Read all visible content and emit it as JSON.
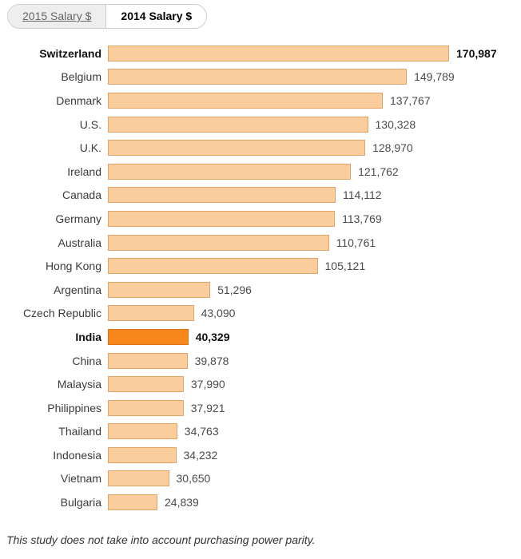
{
  "tabs": [
    {
      "label": "2015 Salary $",
      "active": false
    },
    {
      "label": "2014 Salary $",
      "active": true
    }
  ],
  "chart_data": {
    "type": "bar",
    "orientation": "horizontal",
    "title": "2014 Salary $",
    "xlabel": "",
    "ylabel": "",
    "xlim": [
      0,
      170987
    ],
    "grid": false,
    "legend": false,
    "categories": [
      "Switzerland",
      "Belgium",
      "Denmark",
      "U.S.",
      "U.K.",
      "Ireland",
      "Canada",
      "Germany",
      "Australia",
      "Hong Kong",
      "Argentina",
      "Czech Republic",
      "India",
      "China",
      "Malaysia",
      "Philippines",
      "Thailand",
      "Indonesia",
      "Vietnam",
      "Bulgaria"
    ],
    "values": [
      170987,
      149789,
      137767,
      130328,
      128970,
      121762,
      114112,
      113769,
      110761,
      105121,
      51296,
      43090,
      40329,
      39878,
      37990,
      37921,
      34763,
      34232,
      30650,
      24839
    ],
    "value_labels": [
      "170,987",
      "149,789",
      "137,767",
      "130,328",
      "128,970",
      "121,762",
      "114,112",
      "113,769",
      "110,761",
      "105,121",
      "51,296",
      "43,090",
      "40,329",
      "39,878",
      "37,990",
      "37,921",
      "34,763",
      "34,232",
      "30,650",
      "24,839"
    ],
    "bold_rows": [
      "Switzerland",
      "India"
    ],
    "highlighted_bar": "India"
  },
  "colors": {
    "bar_fill": "#FBCD9D",
    "bar_border": "#E3A368",
    "highlight_fill": "#F8871B",
    "highlight_border": "#DC7519",
    "label_text": "#3A3A3A",
    "value_text": "#4A4A4A",
    "bold_text": "#111111",
    "tab_inactive_bg": "#EEEEEE",
    "tab_inactive_text": "#666666",
    "tab_border": "#CCCCCC"
  },
  "footer": {
    "note": "This study does not take into account purchasing power parity."
  }
}
